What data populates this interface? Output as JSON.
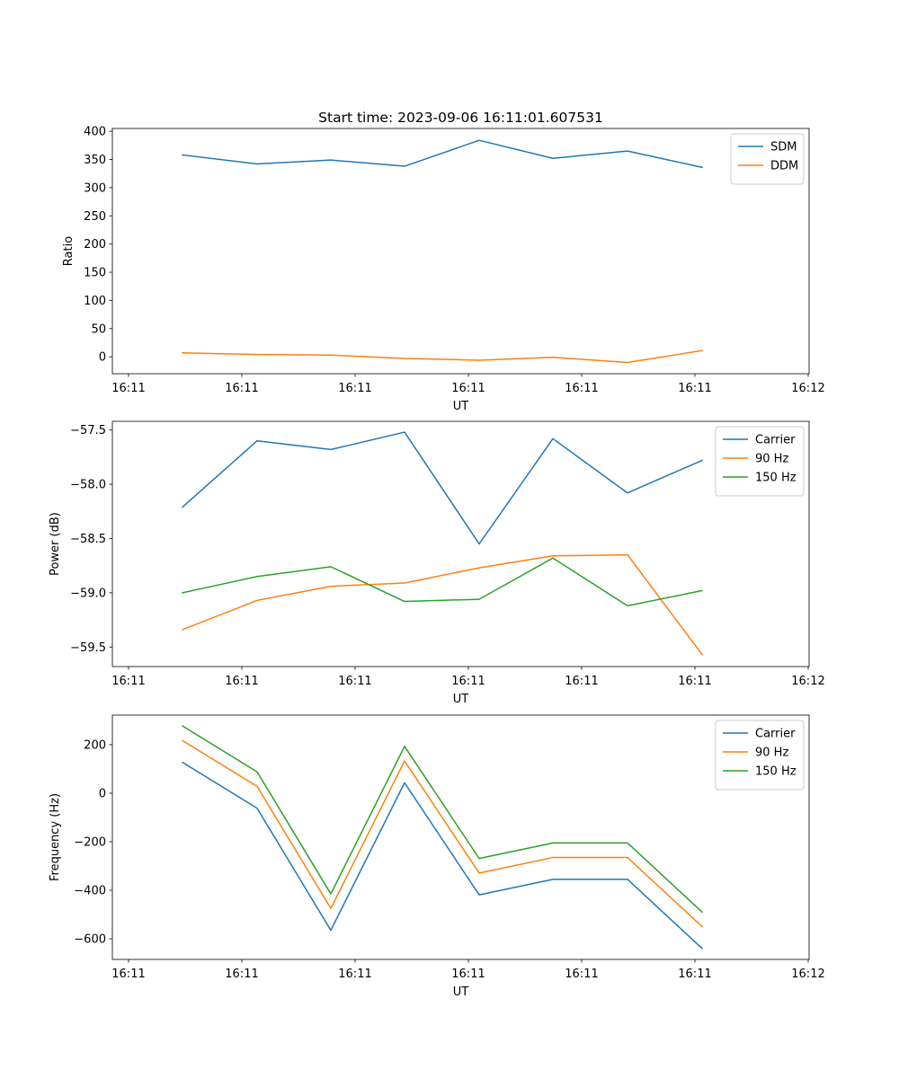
{
  "chart_data": [
    {
      "type": "line",
      "title": "Start time: 2023-09-06 16:11:01.607531",
      "xlabel": "UT",
      "ylabel": "Ratio",
      "xticks": [
        "16:11",
        "16:11",
        "16:11",
        "16:11",
        "16:11",
        "16:11",
        "16:11"
      ],
      "xticks_last": "16:12",
      "ylim": [
        -30,
        405
      ],
      "yticks": [
        0,
        50,
        100,
        150,
        200,
        250,
        300,
        350,
        400
      ],
      "ytick_labels": [
        "0",
        "50",
        "100",
        "150",
        "200",
        "250",
        "300",
        "350",
        "400"
      ],
      "legend": "top-right",
      "series": [
        {
          "name": "SDM",
          "color": "#1f77b4",
          "values": [
            358,
            342,
            349,
            338,
            384,
            352,
            365,
            336
          ]
        },
        {
          "name": "DDM",
          "color": "#ff7f0e",
          "values": [
            7,
            4,
            3,
            -3,
            -6,
            -1,
            -10,
            11
          ]
        }
      ]
    },
    {
      "type": "line",
      "title": "",
      "xlabel": "UT",
      "ylabel": "Power (dB)",
      "xticks": [
        "16:11",
        "16:11",
        "16:11",
        "16:11",
        "16:11",
        "16:11",
        "16:11"
      ],
      "xticks_last": "16:12",
      "ylim": [
        -59.68,
        -57.42
      ],
      "yticks": [
        -59.5,
        -59.0,
        -58.5,
        -58.0,
        -57.5
      ],
      "ytick_labels": [
        "−59.5",
        "−59.0",
        "−58.5",
        "−58.0",
        "−57.5"
      ],
      "legend": "top-right",
      "series": [
        {
          "name": "Carrier",
          "color": "#1f77b4",
          "values": [
            -58.21,
            -57.6,
            -57.68,
            -57.52,
            -58.55,
            -57.58,
            -58.08,
            -57.78
          ]
        },
        {
          "name": "90 Hz",
          "color": "#ff7f0e",
          "values": [
            -59.34,
            -59.07,
            -58.94,
            -58.91,
            -58.77,
            -58.66,
            -58.65,
            -59.57
          ]
        },
        {
          "name": "150 Hz",
          "color": "#2ca02c",
          "values": [
            -59.0,
            -58.85,
            -58.76,
            -59.08,
            -59.06,
            -58.68,
            -59.12,
            -58.98
          ]
        }
      ]
    },
    {
      "type": "line",
      "title": "",
      "xlabel": "UT",
      "ylabel": "Frequency (Hz)",
      "xticks": [
        "16:11",
        "16:11",
        "16:11",
        "16:11",
        "16:11",
        "16:11",
        "16:11"
      ],
      "xticks_last": "16:12",
      "ylim": [
        -685,
        322
      ],
      "yticks": [
        -600,
        -400,
        -200,
        0,
        200
      ],
      "ytick_labels": [
        "−600",
        "−400",
        "−200",
        "0",
        "200"
      ],
      "legend": "top-right",
      "series": [
        {
          "name": "Carrier",
          "color": "#1f77b4",
          "values": [
            127,
            -62,
            -565,
            43,
            -419,
            -355,
            -355,
            -640
          ]
        },
        {
          "name": "90 Hz",
          "color": "#ff7f0e",
          "values": [
            217,
            28,
            -475,
            133,
            -329,
            -265,
            -265,
            -550
          ]
        },
        {
          "name": "150 Hz",
          "color": "#2ca02c",
          "values": [
            277,
            88,
            -415,
            193,
            -269,
            -205,
            -205,
            -490
          ]
        }
      ]
    }
  ]
}
